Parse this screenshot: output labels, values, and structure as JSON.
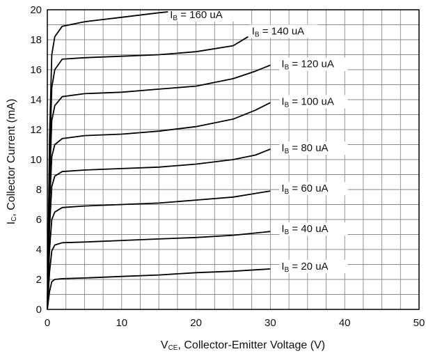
{
  "chart_data": {
    "type": "line",
    "xlabel": {
      "symbol": "V",
      "sub": "CE",
      "rest": ", Collector-Emitter Voltage (V)"
    },
    "ylabel": {
      "symbol": "I",
      "sub": "C",
      "rest": ", Collector Current (mA)"
    },
    "xlim": [
      0,
      50
    ],
    "ylim": [
      0,
      20
    ],
    "xticks": [
      0,
      10,
      20,
      30,
      40,
      50
    ],
    "yticks": [
      0,
      2,
      4,
      6,
      8,
      10,
      12,
      14,
      16,
      18,
      20
    ],
    "grid": true,
    "series": [
      {
        "name": "20 uA",
        "label_symbol": "I",
        "label_sub": "B",
        "points": [
          [
            0,
            0
          ],
          [
            0.3,
            1.2
          ],
          [
            0.6,
            1.85
          ],
          [
            1,
            2.0
          ],
          [
            2,
            2.05
          ],
          [
            5,
            2.1
          ],
          [
            10,
            2.2
          ],
          [
            15,
            2.3
          ],
          [
            20,
            2.45
          ],
          [
            25,
            2.55
          ],
          [
            30,
            2.7
          ]
        ]
      },
      {
        "name": "40 uA",
        "label_symbol": "I",
        "label_sub": "B",
        "points": [
          [
            0,
            0
          ],
          [
            0.3,
            2.5
          ],
          [
            0.6,
            3.9
          ],
          [
            1,
            4.3
          ],
          [
            2,
            4.45
          ],
          [
            5,
            4.5
          ],
          [
            10,
            4.6
          ],
          [
            15,
            4.7
          ],
          [
            20,
            4.8
          ],
          [
            25,
            4.95
          ],
          [
            30,
            5.2
          ]
        ]
      },
      {
        "name": "60 uA",
        "label_symbol": "I",
        "label_sub": "B",
        "points": [
          [
            0,
            0
          ],
          [
            0.3,
            4.0
          ],
          [
            0.6,
            6.0
          ],
          [
            1,
            6.5
          ],
          [
            2,
            6.8
          ],
          [
            5,
            6.9
          ],
          [
            10,
            7.0
          ],
          [
            15,
            7.1
          ],
          [
            20,
            7.3
          ],
          [
            25,
            7.5
          ],
          [
            30,
            7.9
          ]
        ]
      },
      {
        "name": "80 uA",
        "label_symbol": "I",
        "label_sub": "B",
        "points": [
          [
            0,
            0
          ],
          [
            0.3,
            5.5
          ],
          [
            0.6,
            8.2
          ],
          [
            1,
            8.9
          ],
          [
            2,
            9.2
          ],
          [
            5,
            9.3
          ],
          [
            10,
            9.4
          ],
          [
            15,
            9.5
          ],
          [
            20,
            9.7
          ],
          [
            25,
            10.0
          ],
          [
            28,
            10.3
          ],
          [
            30,
            10.7
          ]
        ]
      },
      {
        "name": "100 uA",
        "label_symbol": "I",
        "label_sub": "B",
        "points": [
          [
            0,
            0
          ],
          [
            0.3,
            7.0
          ],
          [
            0.6,
            10.2
          ],
          [
            1,
            11.0
          ],
          [
            2,
            11.4
          ],
          [
            5,
            11.6
          ],
          [
            10,
            11.7
          ],
          [
            15,
            11.9
          ],
          [
            20,
            12.2
          ],
          [
            25,
            12.7
          ],
          [
            28,
            13.3
          ],
          [
            30,
            13.8
          ]
        ]
      },
      {
        "name": "120 uA",
        "label_symbol": "I",
        "label_sub": "B",
        "points": [
          [
            0,
            0
          ],
          [
            0.3,
            8.5
          ],
          [
            0.6,
            12.6
          ],
          [
            1,
            13.6
          ],
          [
            2,
            14.2
          ],
          [
            5,
            14.4
          ],
          [
            10,
            14.5
          ],
          [
            15,
            14.7
          ],
          [
            20,
            14.9
          ],
          [
            25,
            15.4
          ],
          [
            28,
            15.9
          ],
          [
            30,
            16.3
          ]
        ]
      },
      {
        "name": "140 uA",
        "label_symbol": "I",
        "label_sub": "B",
        "points": [
          [
            0,
            0
          ],
          [
            0.3,
            10.0
          ],
          [
            0.6,
            14.8
          ],
          [
            1,
            16.0
          ],
          [
            2,
            16.7
          ],
          [
            5,
            16.8
          ],
          [
            10,
            16.9
          ],
          [
            15,
            17.0
          ],
          [
            20,
            17.2
          ],
          [
            25,
            17.6
          ],
          [
            27,
            18.2
          ]
        ]
      },
      {
        "name": "160 uA",
        "label_symbol": "I",
        "label_sub": "B",
        "points": [
          [
            0,
            0
          ],
          [
            0.3,
            11.5
          ],
          [
            0.6,
            17.0
          ],
          [
            1,
            18.2
          ],
          [
            2,
            18.9
          ],
          [
            5,
            19.2
          ],
          [
            10,
            19.5
          ],
          [
            15,
            19.8
          ],
          [
            19,
            20.0
          ]
        ]
      }
    ],
    "labels": [
      {
        "series": "160 uA",
        "x": 16.5,
        "y": 19.5
      },
      {
        "series": "140 uA",
        "x": 27.5,
        "y": 18.4
      },
      {
        "series": "120 uA",
        "x": 31.5,
        "y": 16.2
      },
      {
        "series": "100 uA",
        "x": 31.5,
        "y": 13.7
      },
      {
        "series": "80 uA",
        "x": 31.5,
        "y": 10.6
      },
      {
        "series": "60 uA",
        "x": 31.5,
        "y": 7.9
      },
      {
        "series": "40 uA",
        "x": 31.5,
        "y": 5.2
      },
      {
        "series": "20 uA",
        "x": 31.5,
        "y": 2.7
      }
    ]
  }
}
